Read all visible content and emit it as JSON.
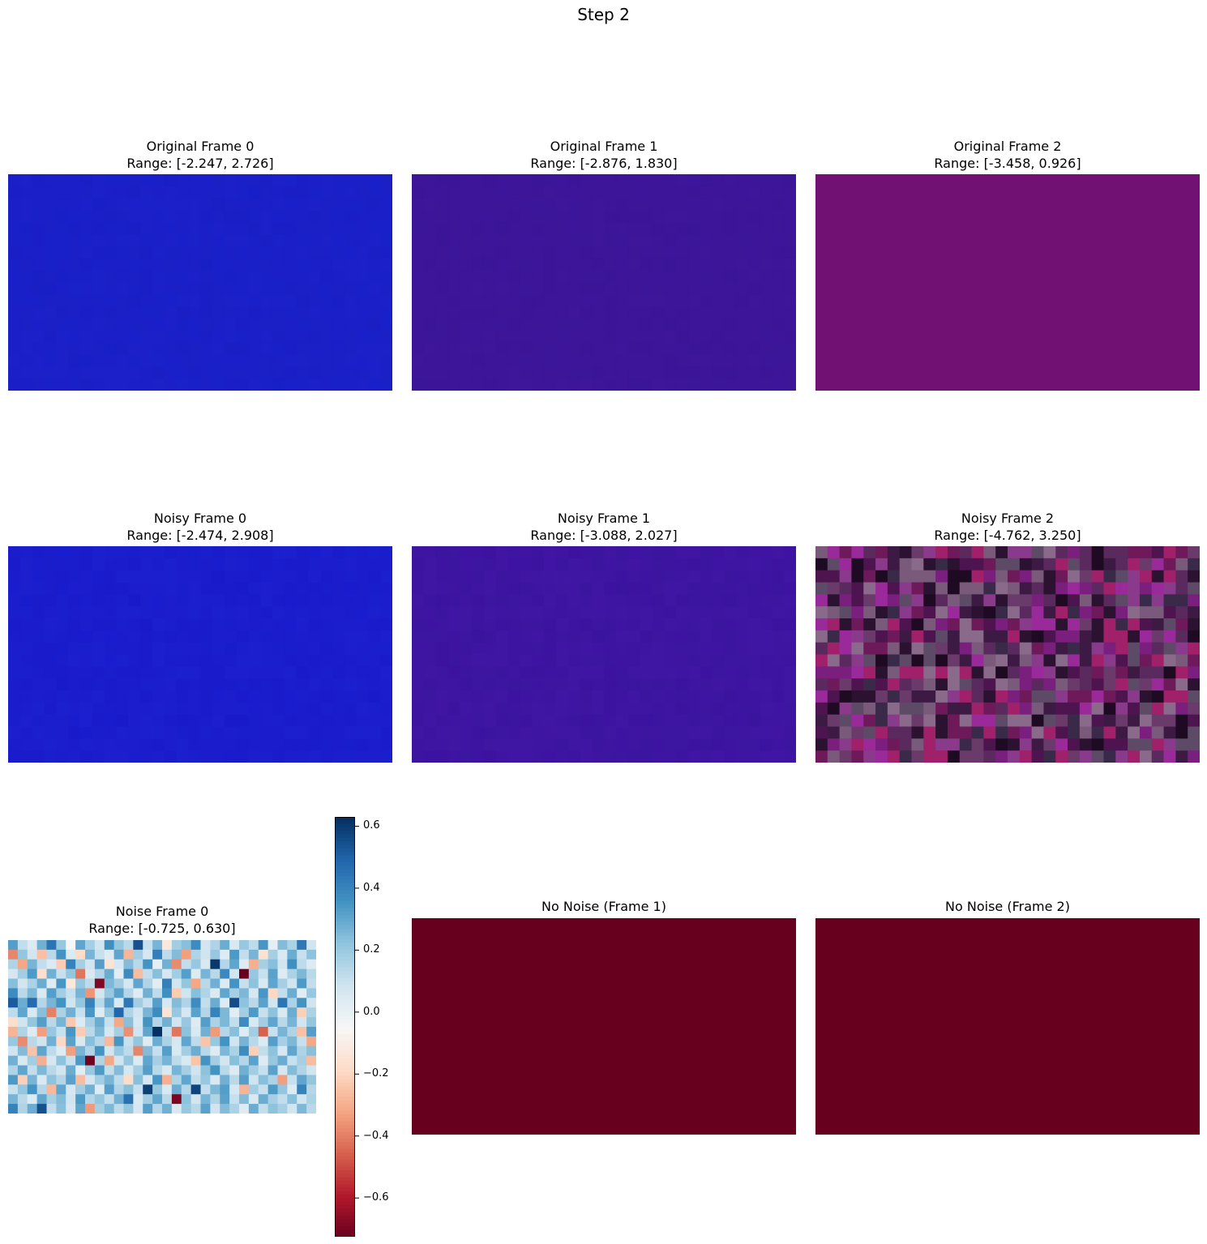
{
  "figure": {
    "suptitle": "Step 2"
  },
  "panels": [
    {
      "title": "Original Frame 0",
      "range": "Range: [-2.247, 2.726]",
      "fill": "#1a1fc6",
      "tint": "#1c22cc"
    },
    {
      "title": "Original Frame 1",
      "range": "Range: [-2.876, 1.830]",
      "fill": "#3c1598",
      "tint": "#3e179c"
    },
    {
      "title": "Original Frame 2",
      "range": "Range: [-3.458, 0.926]",
      "fill": "#701173",
      "tint": "#721275"
    },
    {
      "title": "Noisy Frame 0",
      "range": "Range: [-2.474, 2.908]",
      "fill": "#1a1ccc",
      "tint": "#1f22cf"
    },
    {
      "title": "Noisy Frame 1",
      "range": "Range: [-3.088, 2.027]",
      "fill": "#3b14a0",
      "tint": "#4318a6"
    },
    {
      "title": "Noisy Frame 2",
      "range": "Range: [-4.762, 3.250]",
      "fill": "#4a1f4d",
      "tint": "#6b1a6e"
    },
    {
      "title": "Noise Frame 0",
      "range": "Range: [-0.725, 0.630]"
    },
    {
      "title": "No Noise (Frame 1)",
      "range": "",
      "fill": "#67001f"
    },
    {
      "title": "No Noise (Frame 2)",
      "range": "",
      "fill": "#67001f"
    }
  ],
  "chart_data": {
    "type": "heatmap",
    "title": "Noise Frame 0",
    "subtitle": "Range: [-0.725, 0.630]",
    "colormap": "RdBu",
    "vmin": -0.725,
    "vmax": 0.63,
    "colorbar_ticks": [
      0.6,
      0.4,
      0.2,
      0.0,
      -0.2,
      -0.4,
      -0.6
    ],
    "colorbar_tick_labels": [
      "0.6",
      "0.4",
      "0.2",
      "0.0",
      "−0.2",
      "−0.4",
      "−0.6"
    ],
    "grid_rows": 18,
    "grid_cols": 32,
    "values": [
      [
        0.33,
        0.12,
        0.05,
        0.28,
        0.45,
        0.21,
        -0.04,
        0.31,
        0.18,
        0.09,
        0.37,
        0.22,
        0.14,
        0.55,
        0.11,
        0.27,
        -0.12,
        0.19,
        0.24,
        0.38,
        0.08,
        0.16,
        0.29,
        0.06,
        0.21,
        0.13,
        0.35,
        0.02,
        0.25,
        0.17,
        0.44,
        0.09
      ],
      [
        -0.38,
        0.22,
        0.08,
        -0.25,
        0.14,
        0.36,
        0.05,
        -0.18,
        0.27,
        0.11,
        0.04,
        0.31,
        -0.28,
        0.19,
        0.07,
        0.42,
        0.13,
        0.25,
        -0.33,
        0.16,
        0.09,
        0.21,
        0.04,
        0.34,
        0.12,
        0.27,
        -0.15,
        0.18,
        0.06,
        0.29,
        0.11,
        0.23
      ],
      [
        0.16,
        -0.31,
        0.27,
        0.12,
        0.05,
        -0.22,
        0.41,
        0.18,
        0.09,
        0.33,
        -0.14,
        0.07,
        0.25,
        0.14,
        0.36,
        0.02,
        0.28,
        -0.37,
        0.12,
        0.21,
        0.06,
        0.61,
        0.15,
        0.31,
        0.04,
        -0.29,
        0.18,
        0.24,
        0.09,
        0.37,
        0.13,
        0.05
      ],
      [
        0.07,
        0.19,
        0.34,
        -0.16,
        0.28,
        0.11,
        0.22,
        -0.41,
        0.06,
        0.15,
        0.29,
        0.03,
        0.38,
        -0.26,
        0.12,
        0.24,
        0.07,
        0.19,
        0.33,
        0.05,
        0.27,
        0.14,
        0.39,
        0.08,
        -0.73,
        0.21,
        0.11,
        0.32,
        0.04,
        0.17,
        0.26,
        0.14
      ],
      [
        0.24,
        0.08,
        0.17,
        0.29,
        0.04,
        0.35,
        -0.12,
        0.21,
        0.13,
        -0.68,
        0.26,
        0.19,
        0.07,
        0.31,
        0.16,
        0.03,
        0.42,
        0.09,
        0.22,
        -0.31,
        0.14,
        0.28,
        0.05,
        0.36,
        0.11,
        0.23,
        0.06,
        0.31,
        0.18,
        0.09,
        0.34,
        0.12
      ],
      [
        0.38,
        0.14,
        0.26,
        0.06,
        0.33,
        0.19,
        0.11,
        0.27,
        -0.35,
        0.08,
        0.21,
        0.32,
        0.15,
        0.04,
        0.28,
        0.13,
        0.37,
        -0.22,
        0.09,
        0.24,
        0.16,
        0.05,
        0.31,
        0.18,
        0.26,
        0.07,
        0.35,
        -0.19,
        0.12,
        0.29,
        0.03,
        0.21
      ],
      [
        0.52,
        0.29,
        0.48,
        0.15,
        0.27,
        0.36,
        0.09,
        0.22,
        0.41,
        0.14,
        0.31,
        0.06,
        0.44,
        0.19,
        0.11,
        0.33,
        0.07,
        0.25,
        0.16,
        0.38,
        0.12,
        0.29,
        0.04,
        0.56,
        0.23,
        0.14,
        0.32,
        0.08,
        0.45,
        0.17,
        0.36,
        0.09
      ],
      [
        0.13,
        0.31,
        0.06,
        0.24,
        -0.39,
        0.17,
        0.28,
        0.11,
        0.35,
        0.04,
        0.22,
        0.49,
        0.16,
        0.09,
        0.27,
        0.38,
        -0.14,
        0.21,
        0.07,
        0.32,
        0.15,
        0.41,
        0.26,
        0.03,
        0.19,
        0.34,
        0.11,
        0.23,
        0.06,
        0.29,
        -0.21,
        0.17
      ],
      [
        -0.17,
        0.09,
        0.22,
        0.33,
        0.14,
        0.27,
        -0.23,
        0.05,
        0.18,
        0.29,
        0.11,
        -0.31,
        0.24,
        0.07,
        0.36,
        0.15,
        0.28,
        0.09,
        0.21,
        0.04,
        0.33,
        0.17,
        0.26,
        0.12,
        0.38,
        0.06,
        0.19,
        0.31,
        0.14,
        0.27,
        0.08,
        0.22
      ],
      [
        -0.28,
        0.16,
        0.04,
        -0.33,
        0.21,
        0.11,
        0.35,
        -0.22,
        0.14,
        0.26,
        0.07,
        0.18,
        -0.36,
        0.09,
        0.31,
        0.63,
        0.12,
        -0.41,
        0.23,
        0.06,
        0.28,
        -0.34,
        0.15,
        0.24,
        0.04,
        0.19,
        -0.45,
        0.11,
        0.27,
        0.16,
        -0.25,
        0.33
      ],
      [
        0.21,
        -0.37,
        0.14,
        0.09,
        0.28,
        -0.19,
        0.32,
        0.06,
        0.24,
        0.15,
        -0.27,
        0.35,
        0.11,
        0.22,
        0.04,
        0.29,
        0.17,
        0.07,
        0.31,
        0.13,
        -0.24,
        0.21,
        0.36,
        0.09,
        0.27,
        0.14,
        0.05,
        0.33,
        0.18,
        0.26,
        0.11,
        -0.31
      ],
      [
        0.09,
        0.25,
        -0.24,
        0.31,
        0.13,
        0.04,
        -0.33,
        0.27,
        0.16,
        0.36,
        0.08,
        0.21,
        0.13,
        -0.38,
        0.25,
        0.11,
        0.33,
        0.06,
        0.19,
        0.29,
        0.14,
        0.04,
        0.26,
        0.17,
        0.38,
        -0.21,
        0.12,
        0.23,
        0.07,
        0.31,
        0.16,
        0.24
      ],
      [
        0.28,
        0.06,
        0.19,
        -0.29,
        0.07,
        0.23,
        0.11,
        0.34,
        -0.71,
        0.16,
        -0.31,
        0.09,
        0.22,
        0.05,
        0.31,
        0.18,
        0.27,
        0.13,
        0.06,
        -0.24,
        0.36,
        0.19,
        0.08,
        0.24,
        0.15,
        0.32,
        0.04,
        0.21,
        0.29,
        0.11,
        0.18,
        -0.26
      ],
      [
        0.16,
        0.31,
        0.12,
        0.26,
        0.14,
        0.08,
        0.29,
        0.03,
        0.21,
        0.34,
        0.12,
        0.25,
        0.07,
        0.19,
        0.33,
        0.14,
        0.06,
        0.27,
        0.18,
        0.09,
        0.23,
        0.36,
        0.14,
        0.05,
        0.28,
        0.19,
        0.11,
        0.32,
        0.07,
        0.25,
        0.16,
        0.09
      ],
      [
        0.34,
        -0.21,
        0.27,
        0.06,
        0.23,
        0.15,
        0.32,
        -0.26,
        0.08,
        0.19,
        0.27,
        0.13,
        -0.18,
        0.24,
        0.07,
        0.35,
        -0.29,
        0.16,
        0.31,
        0.12,
        0.21,
        0.06,
        0.28,
        0.14,
        0.33,
        0.09,
        0.24,
        0.17,
        -0.33,
        0.11,
        0.31,
        0.22
      ],
      [
        0.11,
        0.22,
        0.36,
        0.15,
        -0.27,
        0.31,
        0.07,
        0.19,
        0.28,
        0.04,
        0.33,
        0.16,
        0.24,
        0.11,
        0.59,
        0.21,
        0.06,
        0.29,
        0.15,
        0.58,
        0.12,
        0.26,
        0.33,
        0.07,
        -0.28,
        0.19,
        0.11,
        0.34,
        0.22,
        0.05,
        0.41,
        0.15
      ],
      [
        0.27,
        0.14,
        0.05,
        0.31,
        0.18,
        0.25,
        0.09,
        0.34,
        0.15,
        0.22,
        0.12,
        0.28,
        0.46,
        0.06,
        0.19,
        0.31,
        0.14,
        -0.69,
        0.23,
        0.08,
        0.27,
        0.16,
        0.32,
        0.11,
        0.25,
        0.06,
        0.29,
        0.18,
        0.12,
        0.24,
        0.09,
        0.17
      ],
      [
        0.41,
        0.16,
        0.29,
        0.55,
        0.12,
        0.24,
        0.07,
        0.31,
        -0.34,
        0.18,
        0.26,
        0.13,
        0.22,
        0.07,
        0.33,
        0.15,
        0.28,
        0.06,
        0.21,
        0.14,
        0.32,
        0.09,
        0.25,
        0.17,
        0.04,
        0.29,
        0.12,
        0.23,
        0.18,
        0.08,
        0.26,
        0.14
      ]
    ]
  }
}
